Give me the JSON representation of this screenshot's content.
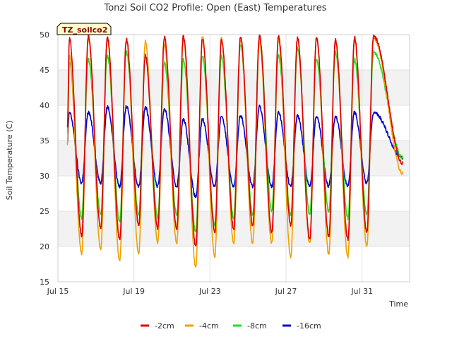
{
  "chart_data": {
    "type": "line",
    "title": "Tonzi Soil CO2 Profile: Open (East) Temperatures",
    "xlabel": "Time",
    "ylabel": "Soil Temperature (C)",
    "badge": "TZ_soilco2",
    "ylim": [
      15,
      50
    ],
    "yticks": [
      15,
      20,
      25,
      30,
      35,
      40,
      45,
      50
    ],
    "xlim_days": [
      15,
      33.5
    ],
    "xticks": [
      {
        "day": 15,
        "label": "Jul 15"
      },
      {
        "day": 19,
        "label": "Jul 19"
      },
      {
        "day": 23,
        "label": "Jul 23"
      },
      {
        "day": 27,
        "label": "Jul 27"
      },
      {
        "day": 31,
        "label": "Jul 31"
      }
    ],
    "grid": true,
    "legend_position": "bottom",
    "data_start_day": 15.5,
    "data_end_day": 33.15,
    "series": [
      {
        "name": "-2cm",
        "color": "#dd0000",
        "max": [
          49.5,
          49.8,
          49.6,
          49.3,
          47.0,
          49.6,
          49.8,
          49.4,
          49.2,
          49.6,
          49.8,
          49.7,
          49.5,
          49.6,
          49.3,
          49.6,
          49.8
        ],
        "min": [
          21.5,
          22.5,
          21.0,
          23.0,
          22.5,
          22.5,
          20.0,
          22.0,
          22.5,
          23.0,
          22.0,
          23.0,
          21.0,
          21.5,
          21.0,
          22.0
        ]
      },
      {
        "name": "-4cm",
        "color": "#f0a000",
        "max": [
          47.0,
          49.5,
          49.4,
          49.2,
          49.0,
          48.5,
          49.5,
          49.8,
          49.5,
          49.2,
          49.0,
          49.2,
          49.3,
          49.5,
          49.0,
          49.4,
          49.5
        ],
        "min": [
          19.0,
          19.5,
          18.0,
          19.0,
          20.5,
          20.5,
          17.0,
          18.5,
          20.5,
          20.5,
          20.5,
          18.5,
          20.5,
          19.0,
          18.5,
          20.0
        ]
      },
      {
        "name": "-8cm",
        "color": "#22dd22",
        "max": [
          46.0,
          46.5,
          47.0,
          47.5,
          47.0,
          46.0,
          46.5,
          47.0,
          47.0,
          48.5,
          49.5,
          47.0,
          48.0,
          46.5,
          47.5,
          46.5,
          47.5
        ],
        "min": [
          24.0,
          24.5,
          23.5,
          24.5,
          24.0,
          24.5,
          22.0,
          23.0,
          24.0,
          24.5,
          25.0,
          24.5,
          24.5,
          25.0,
          24.0,
          24.5
        ]
      },
      {
        "name": "-16cm",
        "color": "#0000cc",
        "max": [
          39.0,
          39.0,
          39.8,
          39.8,
          39.7,
          39.5,
          38.0,
          38.0,
          38.5,
          38.5,
          39.8,
          39.0,
          38.5,
          38.5,
          38.5,
          39.0,
          39.0
        ],
        "min": [
          29.0,
          29.0,
          28.5,
          28.5,
          28.5,
          28.5,
          27.0,
          28.5,
          28.5,
          28.5,
          28.5,
          28.5,
          28.5,
          28.5,
          28.5,
          29.0
        ]
      }
    ]
  }
}
